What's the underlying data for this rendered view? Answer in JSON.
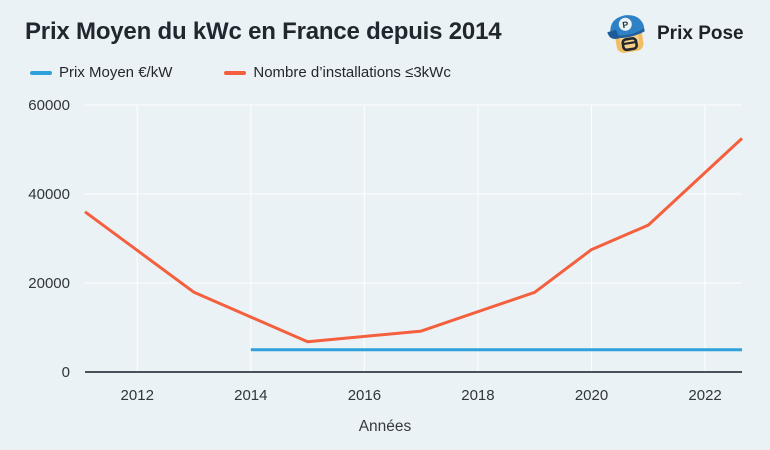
{
  "header": {
    "title": "Prix Moyen du kWc en France depuis 2014",
    "brand": "Prix Pose",
    "logo_letter": "P"
  },
  "legend": [
    {
      "label": "Prix Moyen €/kW",
      "color": "#2fa1da"
    },
    {
      "label": "Nombre d’installations ≤3kWc",
      "color": "#f4603e"
    }
  ],
  "colors": {
    "background": "#ebf2f6",
    "gridline": "#ffffff",
    "axis": "#47525a",
    "tick_text": "#2f363c",
    "title_text": "#20272e",
    "blue_line": "#2fa1da",
    "orange_line": "#f4603e"
  },
  "chart_data": {
    "type": "line",
    "title": "Prix Moyen du kWc en France depuis 2014",
    "xlabel": "Années",
    "ylabel": "",
    "xlim": [
      2011.08,
      2022.65
    ],
    "ylim": [
      0,
      60000
    ],
    "x_ticks": [
      2012,
      2014,
      2016,
      2018,
      2020,
      2022
    ],
    "y_ticks": [
      0,
      20000,
      40000,
      60000
    ],
    "grid": true,
    "legend_position": "top-left",
    "series": [
      {
        "name": "Prix Moyen €/kW",
        "color": "#2fa1da",
        "points": [
          [
            2014,
            5000
          ],
          [
            2022.65,
            5000
          ]
        ]
      },
      {
        "name": "Nombre d’installations ≤3kWc",
        "color": "#f4603e",
        "points": [
          [
            2011.08,
            36000
          ],
          [
            2013,
            17900
          ],
          [
            2015,
            6800
          ],
          [
            2017,
            9200
          ],
          [
            2019,
            17900
          ],
          [
            2020,
            27500
          ],
          [
            2021,
            33000
          ],
          [
            2022.65,
            52500
          ]
        ]
      }
    ]
  }
}
